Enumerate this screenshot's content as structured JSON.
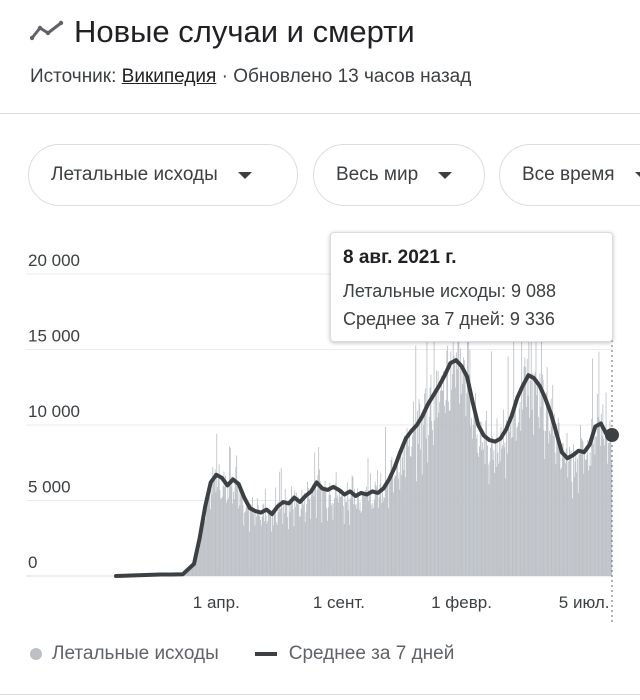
{
  "header": {
    "title": "Новые случаи и смерти",
    "icon": "trending-line-icon",
    "source_prefix": "Источник: ",
    "source_link": "Википедия",
    "source_suffix": " · Обновлено 13 часов назад"
  },
  "filters": [
    {
      "label": "Летальные исходы"
    },
    {
      "label": "Весь мир"
    },
    {
      "label": "Все время"
    }
  ],
  "tooltip": {
    "date": "8 авг. 2021 г.",
    "line1": "Летальные исходы: 9 088",
    "line2": "Среднее за 7 дней: 9 336"
  },
  "legend": {
    "bars": "Летальные исходы",
    "line": "Среднее за 7 дней"
  },
  "colors": {
    "bars": "#bdc1c6",
    "line": "#3c4043",
    "grid": "#e8eaed"
  },
  "chart_data": {
    "type": "bar",
    "ylim": [
      0,
      22000
    ],
    "y_ticks": [
      0,
      5000,
      10000,
      15000,
      20000
    ],
    "y_tick_labels": [
      "0",
      "5 000",
      "10 000",
      "15 000",
      "20 000"
    ],
    "x_tick_labels": [
      {
        "week": 8,
        "label": "1 апр."
      },
      {
        "week": 30,
        "label": "1 сент."
      },
      {
        "week": 52,
        "label": "1 февр."
      },
      {
        "week": 74,
        "label": "5 июл."
      }
    ],
    "x_weeks_range": [
      -10,
      79
    ],
    "series": [
      {
        "name": "Среднее за 7 дней",
        "type": "line",
        "points": [
          [
            -10,
            0
          ],
          [
            -2,
            100
          ],
          [
            0,
            100
          ],
          [
            2,
            120
          ],
          [
            4,
            800
          ],
          [
            5,
            2500
          ],
          [
            6,
            4600
          ],
          [
            7,
            6200
          ],
          [
            8,
            6700
          ],
          [
            9,
            6500
          ],
          [
            10,
            6000
          ],
          [
            11,
            6400
          ],
          [
            12,
            6100
          ],
          [
            13,
            5200
          ],
          [
            14,
            4500
          ],
          [
            15,
            4300
          ],
          [
            16,
            4200
          ],
          [
            17,
            4400
          ],
          [
            18,
            4100
          ],
          [
            19,
            4600
          ],
          [
            20,
            4900
          ],
          [
            21,
            4800
          ],
          [
            22,
            5200
          ],
          [
            23,
            4900
          ],
          [
            24,
            5300
          ],
          [
            25,
            5600
          ],
          [
            26,
            6200
          ],
          [
            27,
            5800
          ],
          [
            28,
            5700
          ],
          [
            29,
            5900
          ],
          [
            30,
            5700
          ],
          [
            31,
            5400
          ],
          [
            32,
            5600
          ],
          [
            33,
            5300
          ],
          [
            34,
            5500
          ],
          [
            35,
            5400
          ],
          [
            36,
            5600
          ],
          [
            37,
            5500
          ],
          [
            38,
            5800
          ],
          [
            39,
            6400
          ],
          [
            40,
            7200
          ],
          [
            41,
            8200
          ],
          [
            42,
            9100
          ],
          [
            43,
            9600
          ],
          [
            44,
            10000
          ],
          [
            45,
            10600
          ],
          [
            46,
            11400
          ],
          [
            47,
            12000
          ],
          [
            48,
            12600
          ],
          [
            49,
            13300
          ],
          [
            50,
            14100
          ],
          [
            51,
            14300
          ],
          [
            52,
            13900
          ],
          [
            53,
            13200
          ],
          [
            54,
            11500
          ],
          [
            55,
            10000
          ],
          [
            56,
            9300
          ],
          [
            57,
            9000
          ],
          [
            58,
            8900
          ],
          [
            59,
            9100
          ],
          [
            60,
            9700
          ],
          [
            61,
            10600
          ],
          [
            62,
            11800
          ],
          [
            63,
            12600
          ],
          [
            64,
            13300
          ],
          [
            65,
            13100
          ],
          [
            66,
            12600
          ],
          [
            67,
            11800
          ],
          [
            68,
            10800
          ],
          [
            69,
            9500
          ],
          [
            70,
            8200
          ],
          [
            71,
            7800
          ],
          [
            72,
            8000
          ],
          [
            73,
            8300
          ],
          [
            74,
            8200
          ],
          [
            75,
            8700
          ],
          [
            76,
            9900
          ],
          [
            77,
            10100
          ],
          [
            78,
            9400
          ]
        ]
      },
      {
        "name": "Летальные исходы",
        "type": "bar",
        "note": "daily bars around the 7-day average"
      }
    ],
    "highlight": {
      "week": 79,
      "value": 9336
    }
  }
}
